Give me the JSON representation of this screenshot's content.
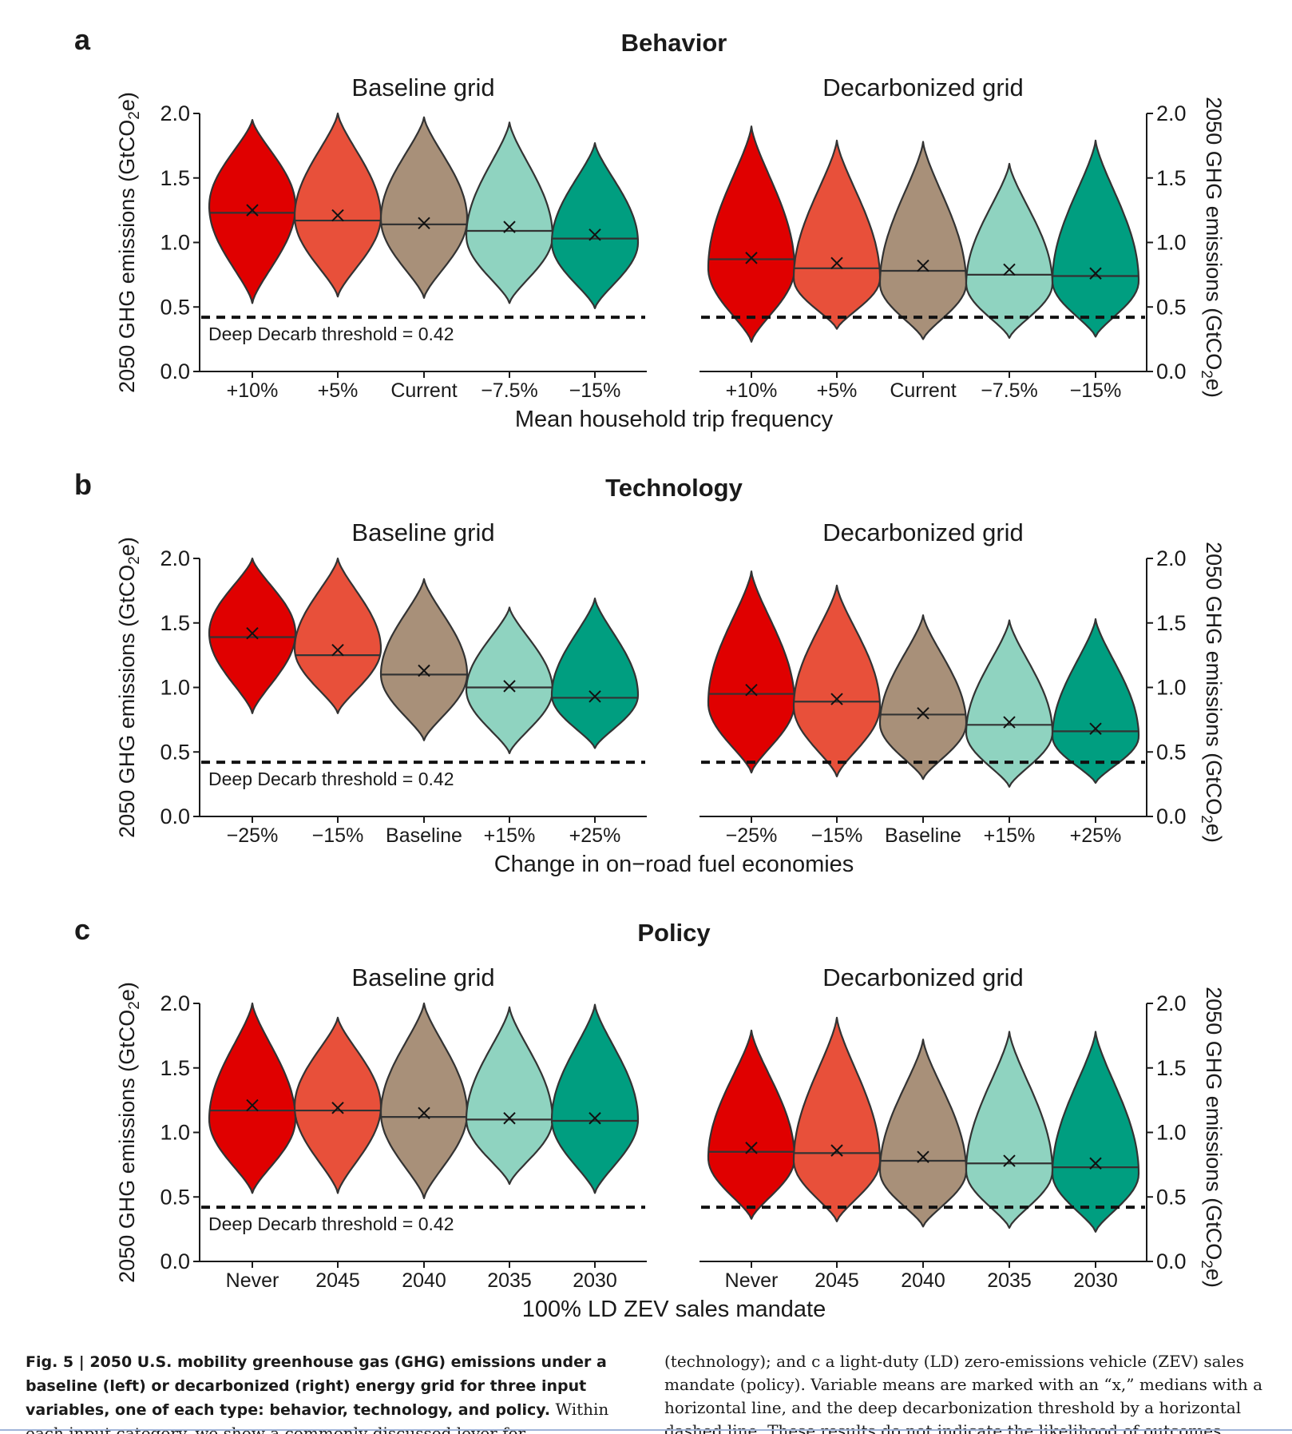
{
  "colors": [
    "#e00000",
    "#e8503a",
    "#a89079",
    "#8fd3c0",
    "#009e80"
  ],
  "shared": {
    "ylabel": "2050 GHG emissions (GtCO₂e)",
    "yticks": [
      "0.0",
      "0.5",
      "1.0",
      "1.5",
      "2.0"
    ],
    "left_title": "Baseline grid",
    "right_title": "Decarbonized grid",
    "threshold_label": "Deep Decarb threshold = 0.42",
    "threshold_value": 0.42,
    "ylim": [
      0,
      2.0
    ]
  },
  "caption": {
    "bold": "Fig. 5 | 2050 U.S. mobility greenhouse gas (GHG) emissions under a baseline (left) or decarbonized (right) energy grid for three input variables, one of each type: behavior, technology, and policy.",
    "text_left": " Within each input category, we show a commonly discussed lever for transportation decarbonization: a demand reduc-",
    "text_right": "(technology); and c a light-duty (LD) zero-emissions vehicle (ZEV) sales mandate (policy). Variable means are marked with an “x,” medians with a horizontal line, and the deep decarbonization threshold by a horizontal dashed line. These results do not indicate the likelihood of outcomes."
  },
  "chart_data": [
    {
      "type": "violin",
      "letter": "a",
      "title": "Behavior",
      "xlabel": "Mean household trip frequency",
      "categories": [
        "+10%",
        "+5%",
        "Current",
        "−7.5%",
        "−15%"
      ],
      "series": [
        {
          "grid": "Baseline grid",
          "min": [
            0.53,
            0.58,
            0.57,
            0.53,
            0.49
          ],
          "max": [
            1.95,
            2.0,
            1.97,
            1.93,
            1.77
          ],
          "median": [
            1.23,
            1.17,
            1.14,
            1.09,
            1.03
          ],
          "mean": [
            1.25,
            1.21,
            1.15,
            1.12,
            1.06
          ],
          "mode": [
            1.28,
            1.2,
            1.18,
            1.05,
            1.0
          ]
        },
        {
          "grid": "Decarbonized grid",
          "min": [
            0.23,
            0.33,
            0.25,
            0.26,
            0.27
          ],
          "max": [
            1.9,
            1.79,
            1.78,
            1.61,
            1.79
          ],
          "median": [
            0.87,
            0.8,
            0.78,
            0.75,
            0.74
          ],
          "mean": [
            0.88,
            0.84,
            0.82,
            0.79,
            0.76
          ],
          "mode": [
            0.8,
            0.72,
            0.68,
            0.68,
            0.7
          ]
        }
      ]
    },
    {
      "type": "violin",
      "letter": "b",
      "title": "Technology",
      "xlabel": "Change in on−road fuel economies",
      "categories": [
        "−25%",
        "−15%",
        "Baseline",
        "+15%",
        "+25%"
      ],
      "series": [
        {
          "grid": "Baseline grid",
          "min": [
            0.8,
            0.8,
            0.59,
            0.49,
            0.53
          ],
          "max": [
            2.0,
            2.0,
            1.84,
            1.62,
            1.69
          ],
          "median": [
            1.39,
            1.25,
            1.1,
            1.0,
            0.92
          ],
          "mean": [
            1.42,
            1.29,
            1.13,
            1.01,
            0.93
          ],
          "mode": [
            1.42,
            1.3,
            1.1,
            0.98,
            0.94
          ]
        },
        {
          "grid": "Decarbonized grid",
          "min": [
            0.34,
            0.31,
            0.29,
            0.23,
            0.26
          ],
          "max": [
            1.9,
            1.79,
            1.56,
            1.52,
            1.53
          ],
          "median": [
            0.95,
            0.89,
            0.79,
            0.71,
            0.66
          ],
          "mean": [
            0.98,
            0.91,
            0.8,
            0.73,
            0.68
          ],
          "mode": [
            0.88,
            0.85,
            0.72,
            0.65,
            0.62
          ]
        }
      ]
    },
    {
      "type": "violin",
      "letter": "c",
      "title": "Policy",
      "xlabel": "100% LD ZEV sales mandate",
      "categories": [
        "Never",
        "2045",
        "2040",
        "2035",
        "2030"
      ],
      "series": [
        {
          "grid": "Baseline grid",
          "min": [
            0.53,
            0.53,
            0.49,
            0.6,
            0.53
          ],
          "max": [
            2.0,
            1.89,
            2.0,
            1.97,
            1.99
          ],
          "median": [
            1.17,
            1.17,
            1.12,
            1.1,
            1.09
          ],
          "mean": [
            1.21,
            1.19,
            1.15,
            1.11,
            1.11
          ],
          "mode": [
            1.1,
            1.2,
            1.15,
            1.1,
            1.1
          ]
        },
        {
          "grid": "Decarbonized grid",
          "min": [
            0.33,
            0.31,
            0.27,
            0.26,
            0.23
          ],
          "max": [
            1.79,
            1.89,
            1.72,
            1.78,
            1.78
          ],
          "median": [
            0.85,
            0.84,
            0.78,
            0.76,
            0.73
          ],
          "mean": [
            0.88,
            0.86,
            0.81,
            0.78,
            0.76
          ],
          "mode": [
            0.8,
            0.78,
            0.7,
            0.7,
            0.68
          ]
        }
      ]
    }
  ]
}
